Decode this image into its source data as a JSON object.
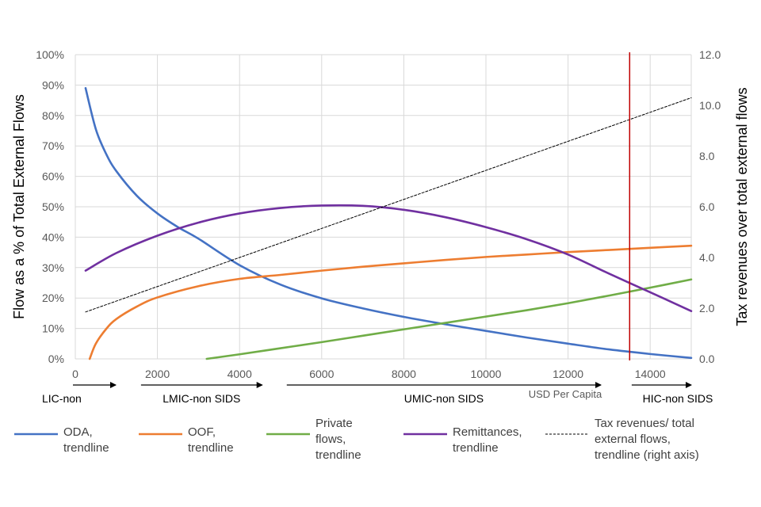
{
  "chart_data": {
    "type": "line",
    "xlim": [
      0,
      15000
    ],
    "x_ticks": [
      "0",
      "2000",
      "4000",
      "6000",
      "8000",
      "10000",
      "12000",
      "14000"
    ],
    "ylabel": "Flow as a % of Total External Flows",
    "ylim": [
      0,
      100
    ],
    "y_ticks": [
      "0%",
      "10%",
      "20%",
      "30%",
      "40%",
      "50%",
      "60%",
      "70%",
      "80%",
      "90%",
      "100%"
    ],
    "y2label": "Tax revenues over total external flows",
    "y2lim": [
      0,
      12
    ],
    "y2_ticks": [
      "0.0",
      "2.0",
      "4.0",
      "6.0",
      "8.0",
      "10.0",
      "12.0"
    ],
    "xlabel_note": "USD Per Capita",
    "threshold_line_x": 13500,
    "income_groups": [
      {
        "label": "LIC-non",
        "x_start": 0,
        "x_end": 1000
      },
      {
        "label": "LMIC-non SIDS",
        "x_start": 1600,
        "x_end": 4550
      },
      {
        "label": "UMIC-non SIDS",
        "x_start": 5150,
        "x_end": 12800
      },
      {
        "label": "HIC-non SIDS",
        "x_start": 13550,
        "x_end": 15000
      }
    ],
    "series": [
      {
        "name": "ODA, trendline",
        "axis": "left",
        "color": "#4472C4",
        "style": "solid",
        "x": [
          250,
          500,
          750,
          1000,
          1500,
          2000,
          2500,
          3000,
          4000,
          5000,
          6000,
          7000,
          8000,
          9000,
          10000,
          11000,
          12000,
          13000,
          14000,
          15000
        ],
        "values": [
          89,
          75.5,
          67.4,
          61.7,
          53.6,
          47.8,
          43.3,
          39.5,
          30.8,
          24.4,
          19.9,
          16.6,
          13.8,
          11.4,
          9.2,
          7.0,
          5.0,
          3.1,
          1.6,
          0.3
        ]
      },
      {
        "name": "OOF, trendline",
        "axis": "left",
        "color": "#ED7D31",
        "style": "solid",
        "x": [
          350,
          500,
          750,
          1000,
          1500,
          2000,
          3000,
          4000,
          5000,
          6000,
          7000,
          8000,
          9000,
          10000,
          11000,
          12000,
          13000,
          14000,
          15000
        ],
        "values": [
          0,
          5,
          9.8,
          13.1,
          17.2,
          20.2,
          23.9,
          26.3,
          27.6,
          29.0,
          30.3,
          31.4,
          32.5,
          33.5,
          34.3,
          35.1,
          35.8,
          36.5,
          37.2
        ]
      },
      {
        "name": "Private flows, trendline",
        "axis": "left",
        "color": "#70AD47",
        "style": "solid",
        "x": [
          3200,
          4000,
          5000,
          6000,
          7000,
          8000,
          9000,
          10000,
          11000,
          12000,
          13000,
          14000,
          15000
        ],
        "values": [
          0,
          1.5,
          3.5,
          5.5,
          7.6,
          9.7,
          11.8,
          13.9,
          16.0,
          18.3,
          20.8,
          23.4,
          26.1
        ]
      },
      {
        "name": "Remittances, trendline",
        "axis": "left",
        "color": "#7030A0",
        "style": "solid",
        "x": [
          250,
          1000,
          2000,
          3000,
          4000,
          5000,
          6000,
          7000,
          8000,
          9000,
          10000,
          11000,
          12000,
          13000,
          14000,
          15000
        ],
        "values": [
          29,
          34.8,
          40.5,
          44.8,
          47.8,
          49.6,
          50.4,
          50.3,
          49.0,
          46.6,
          43.3,
          39.3,
          34.3,
          28.0,
          21.9,
          15.7
        ]
      },
      {
        "name": "Tax revenues/ total external flows, trendline (right axis)",
        "axis": "right",
        "color": "#000000",
        "style": "dashed",
        "x": [
          250,
          15000
        ],
        "values": [
          1.85,
          10.3
        ]
      }
    ]
  },
  "legend": [
    {
      "line1": "ODA,",
      "line2": "trendline",
      "line3": "",
      "color": "#4472C4",
      "dashed": false
    },
    {
      "line1": "OOF,",
      "line2": "trendline",
      "line3": "",
      "color": "#ED7D31",
      "dashed": false
    },
    {
      "line1": "Private",
      "line2": "flows,",
      "line3": "trendline",
      "color": "#70AD47",
      "dashed": false
    },
    {
      "line1": "Remittances,",
      "line2": "trendline",
      "line3": "",
      "color": "#7030A0",
      "dashed": false
    },
    {
      "line1": "Tax revenues/ total",
      "line2": "external flows,",
      "line3": "trendline (right axis)",
      "color": "#000000",
      "dashed": true
    }
  ],
  "colors": {
    "threshold": "#C00000",
    "grid": "#D9D9D9"
  }
}
